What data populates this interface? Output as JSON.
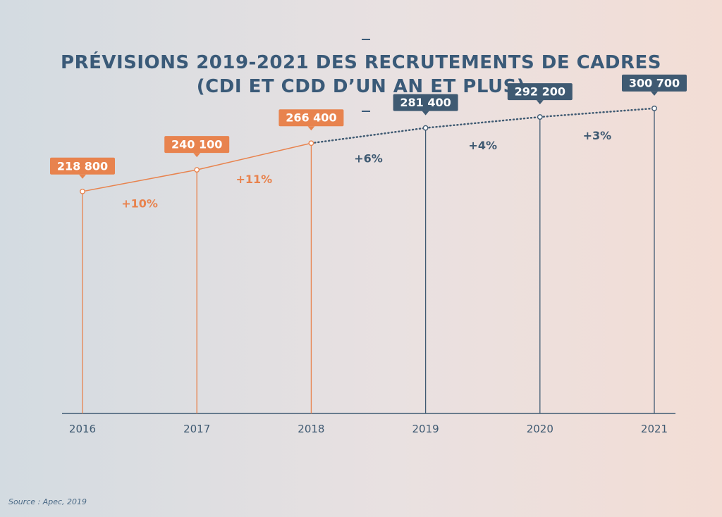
{
  "title_lines": [
    "PRÉVISIONS 2019-2021 DES RECRUTEMENTS DE CADRES",
    "(CDI ET CDD D’UN AN ET PLUS)"
  ],
  "source": "Source : Apec, 2019",
  "colors": {
    "actual": "#e8834e",
    "forecast": "#3f5a72",
    "axis": "#3f5a72",
    "title": "#3a5a78"
  },
  "chart_data": {
    "type": "line",
    "title": "PRÉVISIONS 2019-2021 DES RECRUTEMENTS DE CADRES (CDI ET CDD D’UN AN ET PLUS)",
    "xlabel": "",
    "ylabel": "",
    "ylim": [
      0,
      345000
    ],
    "grid": false,
    "x": [
      "2016",
      "2017",
      "2018",
      "2019",
      "2020",
      "2021"
    ],
    "values": [
      218800,
      240100,
      266400,
      281400,
      292200,
      300700
    ],
    "value_labels": [
      "218 800",
      "240 100",
      "266 400",
      "281 400",
      "292 200",
      "300 700"
    ],
    "status": [
      "actual",
      "actual",
      "actual",
      "forecast",
      "forecast",
      "forecast"
    ],
    "growth_labels": [
      "+10%",
      "+11%",
      "+6%",
      "+4%",
      "+3%"
    ],
    "growth_status": [
      "actual",
      "actual",
      "forecast",
      "forecast",
      "forecast"
    ]
  }
}
